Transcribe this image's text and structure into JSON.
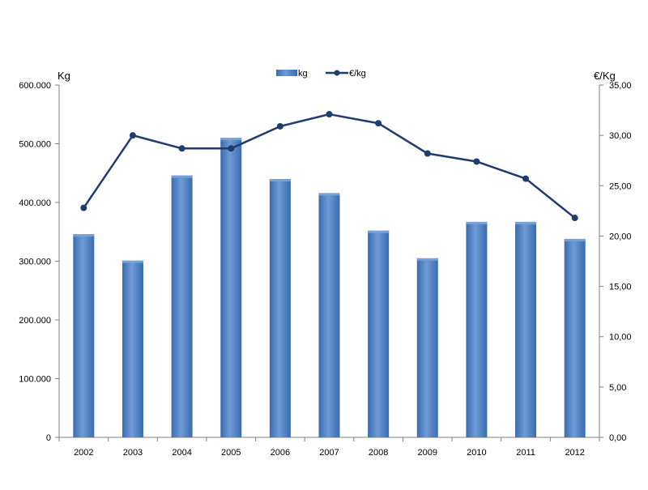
{
  "chart_data": {
    "type": "bar",
    "categories": [
      "2002",
      "2003",
      "2004",
      "2005",
      "2006",
      "2007",
      "2008",
      "2009",
      "2010",
      "2011",
      "2012"
    ],
    "series": [
      {
        "name": "kg",
        "type": "bar",
        "axis": "left",
        "values": [
          346000,
          301000,
          446000,
          510000,
          440000,
          416000,
          352000,
          305000,
          367000,
          367000,
          338000
        ]
      },
      {
        "name": "€/kg",
        "type": "line",
        "axis": "right",
        "values": [
          22.8,
          30.0,
          28.7,
          28.7,
          30.9,
          32.1,
          31.2,
          28.2,
          27.4,
          25.7,
          21.8
        ]
      }
    ],
    "y_left": {
      "label": "Kg",
      "ylim": [
        0,
        600000
      ],
      "ticks": [
        "0",
        "100.000",
        "200.000",
        "300.000",
        "400.000",
        "500.000",
        "600.000"
      ]
    },
    "y_right": {
      "label": "€/Kg",
      "ylim": [
        0,
        35
      ],
      "ticks": [
        "0,00",
        "5,00",
        "10,00",
        "15,00",
        "20,00",
        "25,00",
        "30,00",
        "35,00"
      ]
    },
    "grid": false,
    "legend_position": "top-center",
    "colors": {
      "bar": "#4f81bd",
      "bar_light": "#7aa4d8",
      "bar_dark": "#2f5d9a",
      "line": "#1f3c6e",
      "axis": "#808080"
    }
  }
}
